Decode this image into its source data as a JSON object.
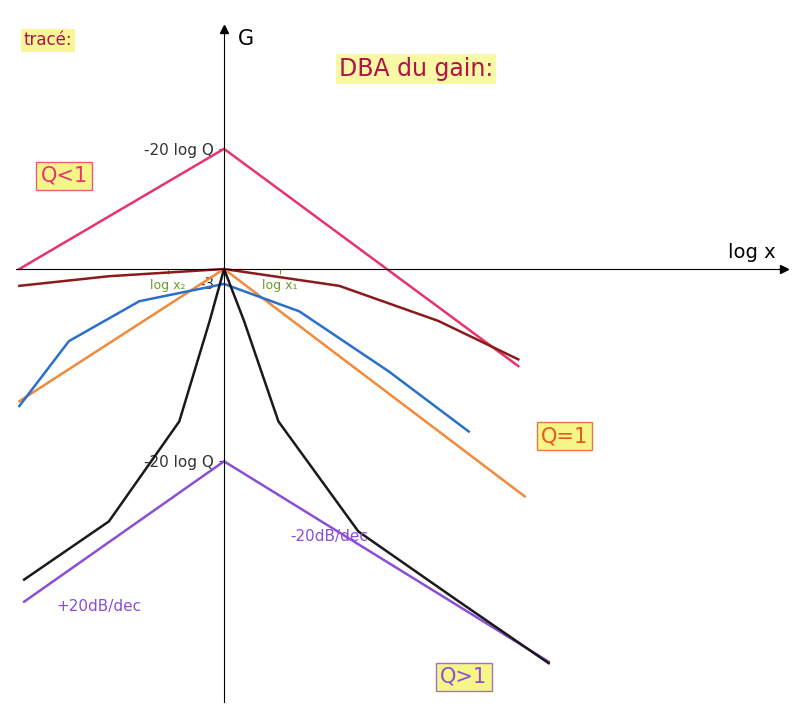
{
  "chart_data": {
    "type": "line",
    "title": "DBA du gain:",
    "subtitle": "tracé:",
    "xlabel": "log x",
    "ylabel": "G",
    "xlim": [
      -1.3,
      3.5
    ],
    "ylim": [
      -90,
      50
    ],
    "xticks": [
      {
        "value": -0.35,
        "label": "log x₂"
      },
      {
        "value": 0.35,
        "label": "log x₁"
      }
    ],
    "yticks": [
      {
        "value": 25,
        "label": "-20 log Q"
      },
      {
        "value": -3,
        "label": "-3"
      },
      {
        "value": -40,
        "label": "-20 log Q"
      }
    ],
    "grid": false,
    "series": [
      {
        "color": "#e8336e",
        "line_style": "solid",
        "x": [
          -1.28,
          0,
          1.84
        ],
        "values": [
          0,
          25,
          -20.2
        ]
      },
      {
        "color": "#8b1a1a",
        "line_style": "solid",
        "x": [
          -1.28,
          -0.72,
          0,
          0.72,
          1.34,
          1.84
        ],
        "values": [
          -3.5,
          -1.5,
          0,
          -3.5,
          -10.8,
          -18.8
        ]
      },
      {
        "color": "#f08a3c",
        "line_style": "solid",
        "x": [
          -1.28,
          0,
          1.88
        ],
        "values": [
          -27.5,
          0,
          -47.3
        ]
      },
      {
        "color": "#2a6fc9",
        "line_style": "solid",
        "x": [
          -1.28,
          -0.97,
          -0.53,
          0,
          0.47,
          1.03,
          1.53
        ],
        "values": [
          -28.5,
          -15,
          -6.7,
          -3.1,
          -8.8,
          -21.3,
          -33.8
        ]
      },
      {
        "color": "#8a4fd6",
        "line_style": "solid",
        "x": [
          -1.25,
          0,
          2.03
        ],
        "values": [
          -69.2,
          -40,
          -81.7
        ]
      },
      {
        "color": "#1a1a1a",
        "line_style": "solid",
        "x": [
          -1.25,
          -0.72,
          -0.28,
          -0.09,
          0,
          0.125,
          0.34,
          0.84,
          1.47,
          2.03
        ],
        "values": [
          -64.6,
          -52.5,
          -31.7,
          -10.8,
          0,
          -10.8,
          -31.7,
          -54.6,
          -69.2,
          -82
        ]
      }
    ],
    "annotations": [
      {
        "text": "Q<1",
        "x": -1.0,
        "y": 19.4,
        "color": "#e8336e"
      },
      {
        "text": "Q=1",
        "x": 2.13,
        "y": -34.8,
        "color": "#e8551e"
      },
      {
        "text": "Q>1",
        "x": 1.5,
        "y": -84.8,
        "color": "#8a4fd6"
      },
      {
        "text": "-20dB/dec",
        "x": 0.66,
        "y": -55.6,
        "color": "#8a4fd6"
      },
      {
        "text": "+20dB/dec",
        "x": -0.78,
        "y": -70.2,
        "color": "#8a4fd6"
      }
    ]
  }
}
